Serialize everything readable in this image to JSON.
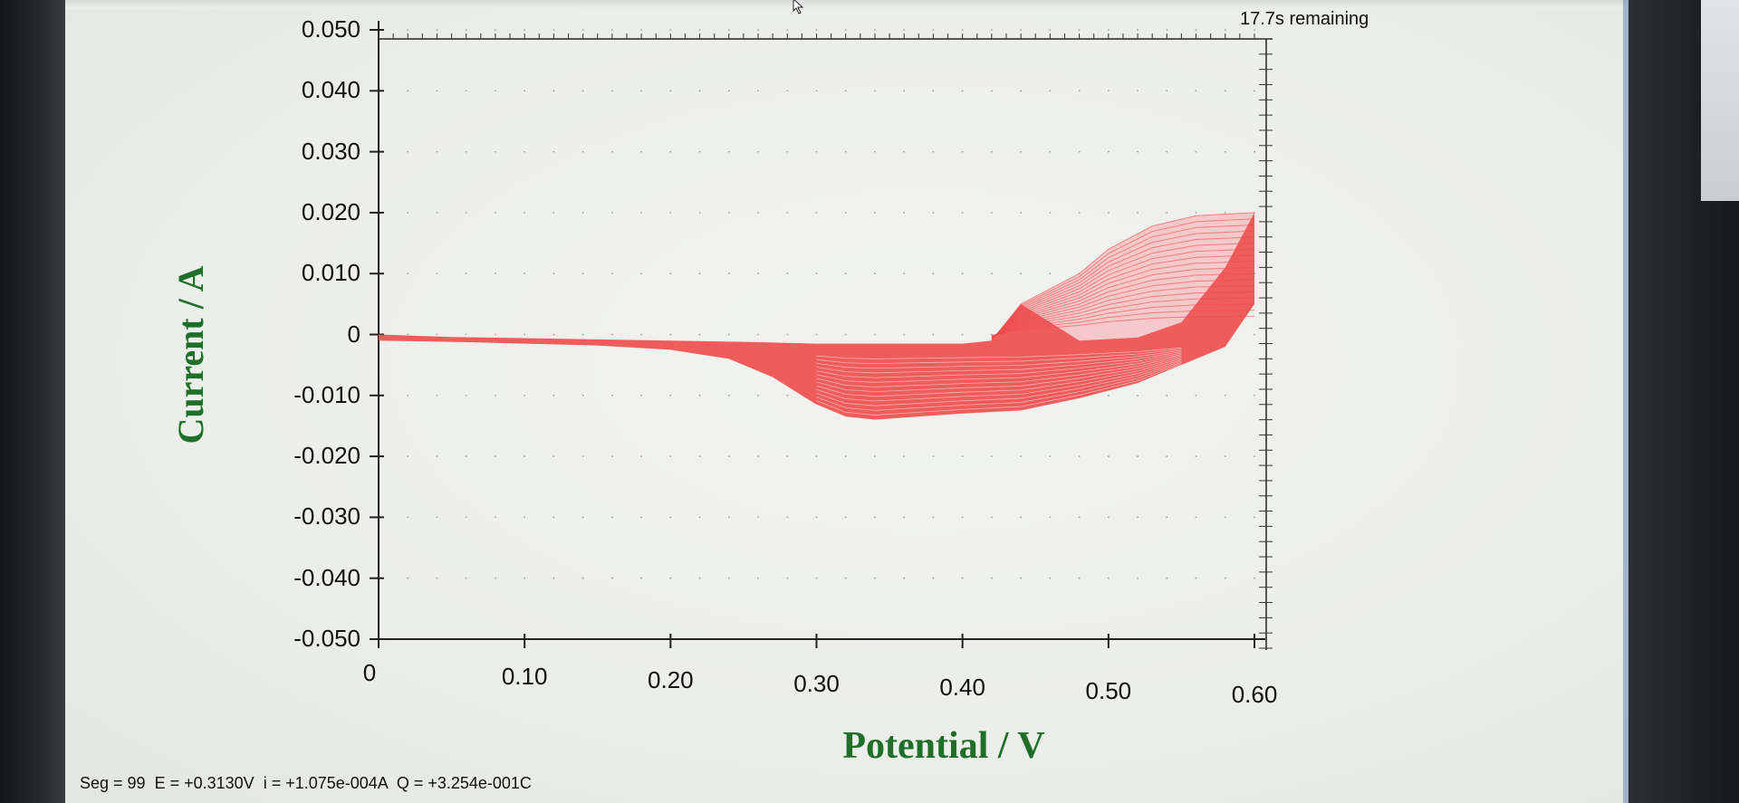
{
  "status_top": {
    "remaining": "17.7s remaining"
  },
  "status_bar": {
    "seg": "Seg = 99",
    "potential": "E = +0.3130V",
    "current": "i = +1.075e-004A",
    "charge": "Q = +3.254e-001C"
  },
  "icons": {
    "cursor": "mouse-cursor-icon"
  },
  "colors": {
    "trace": "#ee4b4b",
    "axis_title": "#1f6f2a",
    "axis": "#222222"
  },
  "chart_data": {
    "type": "line",
    "xlabel": "Potential / V",
    "ylabel": "Current / A",
    "xlim": [
      0,
      0.6
    ],
    "ylim": [
      -0.05,
      0.05
    ],
    "x_ticks": [
      "0",
      "0.10",
      "0.20",
      "0.30",
      "0.40",
      "0.50",
      "0.60"
    ],
    "y_ticks": [
      "0.050",
      "0.040",
      "0.030",
      "0.020",
      "0.010",
      "0",
      "-0.010",
      "-0.020",
      "-0.030",
      "-0.040",
      "-0.050"
    ],
    "grid": "dotted",
    "series": [
      {
        "values_min": [
          [
            0.0,
            -0.001
          ],
          [
            0.05,
            -0.0012
          ],
          [
            0.1,
            -0.0015
          ],
          [
            0.15,
            -0.0018
          ],
          [
            0.2,
            -0.0025
          ],
          [
            0.24,
            -0.004
          ],
          [
            0.27,
            -0.007
          ],
          [
            0.3,
            -0.0115
          ],
          [
            0.32,
            -0.0135
          ],
          [
            0.34,
            -0.014
          ],
          [
            0.37,
            -0.0135
          ],
          [
            0.4,
            -0.013
          ],
          [
            0.44,
            -0.0125
          ],
          [
            0.48,
            -0.0105
          ],
          [
            0.52,
            -0.008
          ],
          [
            0.55,
            -0.005
          ],
          [
            0.58,
            -0.002
          ],
          [
            0.6,
            0.005
          ]
        ],
        "values_max": [
          [
            0.0,
            0.0
          ],
          [
            0.05,
            -0.0004
          ],
          [
            0.1,
            -0.0006
          ],
          [
            0.15,
            -0.0008
          ],
          [
            0.2,
            -0.001
          ],
          [
            0.25,
            -0.0012
          ],
          [
            0.3,
            -0.0015
          ],
          [
            0.35,
            -0.0015
          ],
          [
            0.4,
            -0.0015
          ],
          [
            0.42,
            -0.001
          ],
          [
            0.44,
            0.005
          ],
          [
            0.48,
            0.01
          ],
          [
            0.5,
            0.014
          ],
          [
            0.53,
            0.0178
          ],
          [
            0.56,
            0.0195
          ],
          [
            0.6,
            0.02
          ]
        ],
        "values_reverse_upper": [
          [
            0.6,
            0.02
          ],
          [
            0.58,
            0.011
          ],
          [
            0.55,
            0.002
          ],
          [
            0.52,
            -0.0005
          ],
          [
            0.48,
            -0.001
          ],
          [
            0.44,
            -0.0012
          ],
          [
            0.4,
            -0.0014
          ],
          [
            0.35,
            -0.0014
          ],
          [
            0.3,
            -0.0015
          ],
          [
            0.25,
            -0.0015
          ]
        ]
      }
    ]
  }
}
